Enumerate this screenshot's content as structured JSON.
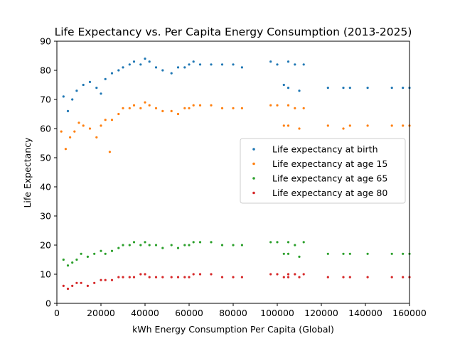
{
  "chart_data": {
    "type": "scatter",
    "title": "Life Expectancy vs. Per Capita Energy Consumption (2013-2025)",
    "xlabel": "kWh Energy Consumption Per Capita (Global)",
    "ylabel": "Life Expectancy",
    "xlim": [
      0,
      160000
    ],
    "ylim": [
      0,
      90
    ],
    "xticks": [
      0,
      20000,
      40000,
      60000,
      80000,
      100000,
      120000,
      140000,
      160000
    ],
    "yticks": [
      0,
      10,
      20,
      30,
      40,
      50,
      60,
      70,
      80,
      90
    ],
    "grid": false,
    "legend_position": "center-right",
    "series": [
      {
        "name": "Life expectancy at birth",
        "color": "#1f77b4",
        "points": [
          [
            3000,
            71
          ],
          [
            5000,
            66
          ],
          [
            7000,
            70
          ],
          [
            9000,
            73
          ],
          [
            12000,
            75
          ],
          [
            15000,
            76
          ],
          [
            18000,
            74
          ],
          [
            20000,
            72
          ],
          [
            22000,
            77
          ],
          [
            25000,
            79
          ],
          [
            28000,
            80
          ],
          [
            30000,
            81
          ],
          [
            33000,
            82
          ],
          [
            35000,
            83
          ],
          [
            38000,
            82
          ],
          [
            40000,
            84
          ],
          [
            42000,
            83
          ],
          [
            45000,
            81
          ],
          [
            48000,
            80
          ],
          [
            52000,
            79
          ],
          [
            55000,
            81
          ],
          [
            58000,
            81
          ],
          [
            60000,
            82
          ],
          [
            62000,
            83
          ],
          [
            65000,
            82
          ],
          [
            70000,
            82
          ],
          [
            75000,
            82
          ],
          [
            80000,
            82
          ],
          [
            84000,
            81
          ],
          [
            97000,
            83
          ],
          [
            100000,
            82
          ],
          [
            105000,
            83
          ],
          [
            108000,
            82
          ],
          [
            112000,
            82
          ],
          [
            103000,
            75
          ],
          [
            105000,
            74
          ],
          [
            110000,
            73
          ],
          [
            123000,
            74
          ],
          [
            130000,
            74
          ],
          [
            133000,
            74
          ],
          [
            141000,
            74
          ],
          [
            152000,
            74
          ],
          [
            157000,
            74
          ],
          [
            160000,
            74
          ]
        ]
      },
      {
        "name": "Life expectancy at age 15",
        "color": "#ff7f0e",
        "points": [
          [
            2000,
            59
          ],
          [
            4000,
            53
          ],
          [
            6000,
            57
          ],
          [
            8000,
            59
          ],
          [
            10000,
            62
          ],
          [
            12000,
            61
          ],
          [
            15000,
            60
          ],
          [
            18000,
            57
          ],
          [
            20000,
            61
          ],
          [
            22000,
            63
          ],
          [
            24000,
            52
          ],
          [
            25000,
            63
          ],
          [
            28000,
            65
          ],
          [
            30000,
            67
          ],
          [
            33000,
            67
          ],
          [
            35000,
            68
          ],
          [
            38000,
            67
          ],
          [
            40000,
            69
          ],
          [
            42000,
            68
          ],
          [
            45000,
            67
          ],
          [
            48000,
            66
          ],
          [
            52000,
            66
          ],
          [
            55000,
            65
          ],
          [
            58000,
            67
          ],
          [
            60000,
            67
          ],
          [
            62000,
            68
          ],
          [
            65000,
            68
          ],
          [
            70000,
            68
          ],
          [
            75000,
            67
          ],
          [
            80000,
            67
          ],
          [
            84000,
            67
          ],
          [
            97000,
            68
          ],
          [
            100000,
            68
          ],
          [
            105000,
            68
          ],
          [
            108000,
            67
          ],
          [
            112000,
            67
          ],
          [
            103000,
            61
          ],
          [
            105000,
            61
          ],
          [
            110000,
            60
          ],
          [
            123000,
            61
          ],
          [
            130000,
            60
          ],
          [
            133000,
            61
          ],
          [
            141000,
            61
          ],
          [
            152000,
            61
          ],
          [
            157000,
            61
          ],
          [
            160000,
            61
          ]
        ]
      },
      {
        "name": "Life expectancy at age 65",
        "color": "#2ca02c",
        "points": [
          [
            3000,
            15
          ],
          [
            5000,
            13
          ],
          [
            7000,
            14
          ],
          [
            9000,
            15
          ],
          [
            11000,
            17
          ],
          [
            14000,
            16
          ],
          [
            17000,
            17
          ],
          [
            20000,
            18
          ],
          [
            22000,
            17
          ],
          [
            25000,
            18
          ],
          [
            28000,
            19
          ],
          [
            30000,
            20
          ],
          [
            33000,
            20
          ],
          [
            35000,
            21
          ],
          [
            38000,
            20
          ],
          [
            40000,
            21
          ],
          [
            42000,
            20
          ],
          [
            45000,
            20
          ],
          [
            48000,
            19
          ],
          [
            52000,
            20
          ],
          [
            55000,
            19
          ],
          [
            58000,
            20
          ],
          [
            60000,
            20
          ],
          [
            62000,
            21
          ],
          [
            65000,
            21
          ],
          [
            70000,
            21
          ],
          [
            75000,
            20
          ],
          [
            80000,
            20
          ],
          [
            84000,
            20
          ],
          [
            97000,
            21
          ],
          [
            100000,
            21
          ],
          [
            105000,
            21
          ],
          [
            108000,
            20
          ],
          [
            112000,
            21
          ],
          [
            103000,
            17
          ],
          [
            105000,
            17
          ],
          [
            110000,
            16
          ],
          [
            123000,
            17
          ],
          [
            130000,
            17
          ],
          [
            133000,
            17
          ],
          [
            141000,
            17
          ],
          [
            152000,
            17
          ],
          [
            157000,
            17
          ],
          [
            160000,
            17
          ]
        ]
      },
      {
        "name": "Life expectancy at age 80",
        "color": "#d62728",
        "points": [
          [
            3000,
            6
          ],
          [
            5000,
            5
          ],
          [
            7000,
            6
          ],
          [
            9000,
            7
          ],
          [
            11000,
            7
          ],
          [
            14000,
            6
          ],
          [
            17000,
            7
          ],
          [
            20000,
            8
          ],
          [
            22000,
            8
          ],
          [
            25000,
            8
          ],
          [
            28000,
            9
          ],
          [
            30000,
            9
          ],
          [
            33000,
            9
          ],
          [
            35000,
            9
          ],
          [
            38000,
            10
          ],
          [
            40000,
            10
          ],
          [
            42000,
            9
          ],
          [
            45000,
            9
          ],
          [
            48000,
            9
          ],
          [
            52000,
            9
          ],
          [
            55000,
            9
          ],
          [
            58000,
            9
          ],
          [
            60000,
            9
          ],
          [
            62000,
            10
          ],
          [
            65000,
            10
          ],
          [
            70000,
            10
          ],
          [
            75000,
            9
          ],
          [
            80000,
            9
          ],
          [
            84000,
            9
          ],
          [
            97000,
            10
          ],
          [
            100000,
            10
          ],
          [
            105000,
            10
          ],
          [
            108000,
            10
          ],
          [
            112000,
            10
          ],
          [
            103000,
            9
          ],
          [
            105000,
            9
          ],
          [
            110000,
            9
          ],
          [
            123000,
            9
          ],
          [
            130000,
            9
          ],
          [
            133000,
            9
          ],
          [
            141000,
            9
          ],
          [
            152000,
            9
          ],
          [
            157000,
            9
          ],
          [
            160000,
            9
          ]
        ]
      }
    ]
  }
}
